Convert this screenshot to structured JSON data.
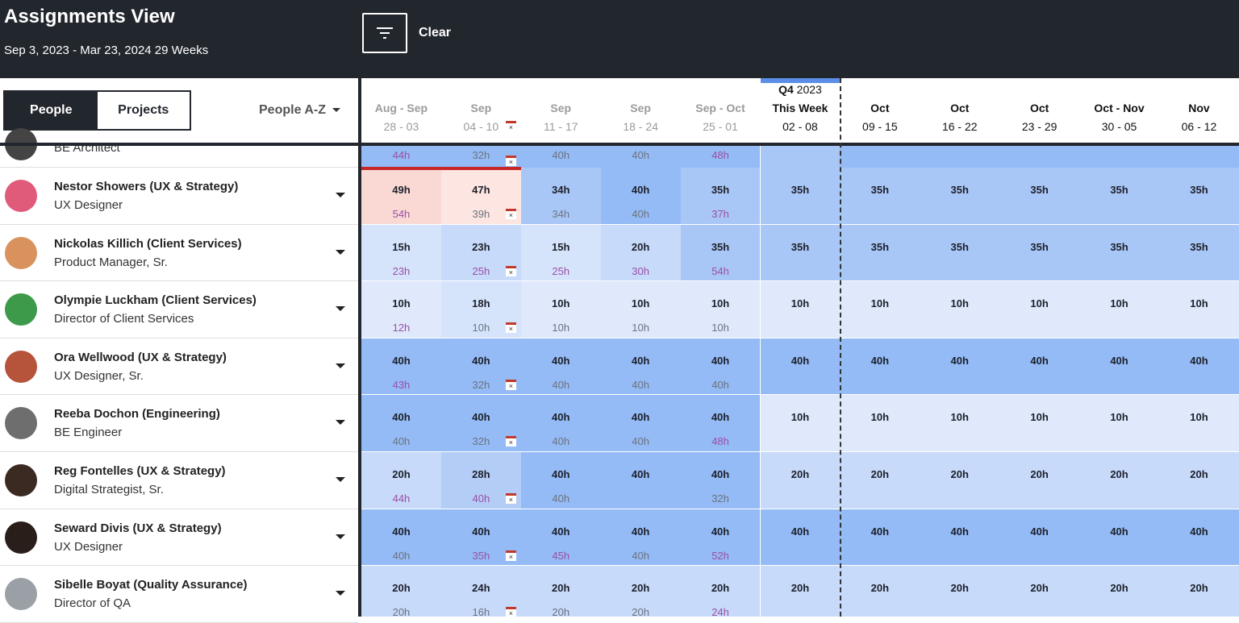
{
  "header": {
    "title": "Assignments View",
    "date_range": "Sep 3, 2023 - Mar 23, 2024  29 Weeks",
    "filter_icon": "filter-icon",
    "clear_label": "Clear"
  },
  "toolbar": {
    "people_label": "People",
    "projects_label": "Projects",
    "sort_label": "People A-Z"
  },
  "columns": [
    {
      "month": "Aug - Sep",
      "dates": "28 - 03",
      "state": "past"
    },
    {
      "month": "Sep",
      "dates": "04 - 10",
      "state": "past",
      "holiday": true
    },
    {
      "month": "Sep",
      "dates": "11 - 17",
      "state": "past"
    },
    {
      "month": "Sep",
      "dates": "18 - 24",
      "state": "past"
    },
    {
      "month": "Sep - Oct",
      "dates": "25 - 01",
      "state": "past"
    },
    {
      "quarter": "Q4",
      "year": "2023",
      "month": "This Week",
      "dates": "02 - 08",
      "state": "cur"
    },
    {
      "month": "Oct",
      "dates": "09 - 15",
      "state": "fut"
    },
    {
      "month": "Oct",
      "dates": "16 - 22",
      "state": "fut"
    },
    {
      "month": "Oct",
      "dates": "23 - 29",
      "state": "fut"
    },
    {
      "month": "Oct - Nov",
      "dates": "30 - 05",
      "state": "fut"
    },
    {
      "month": "Nov",
      "dates": "06 - 12",
      "state": "fut"
    }
  ],
  "colors": {
    "dark": "#22262d",
    "over_text": "#9a4fa6",
    "overbooked": "#fadad5",
    "accent": "#5b8ee6"
  },
  "partial_row": {
    "role": "BE Architect",
    "subs": [
      "44h",
      "32h",
      "40h",
      "40h",
      "48h"
    ],
    "over": [
      true,
      false,
      false,
      false,
      true
    ]
  },
  "people": [
    {
      "name": "Nestor Showers (UX & Strategy)",
      "role": "UX Designer",
      "avatar": "#e05a7a",
      "hours": [
        49,
        47,
        34,
        40,
        35,
        35,
        35,
        35,
        35,
        35,
        35
      ],
      "subs": [
        "54h",
        "39h",
        "34h",
        "40h",
        "37h"
      ],
      "over": [
        true,
        false,
        false,
        false,
        true
      ],
      "overbooked": [
        0,
        1
      ]
    },
    {
      "name": "Nickolas Killich (Client Services)",
      "role": "Product Manager, Sr.",
      "avatar": "#d9925e",
      "hours": [
        15,
        23,
        15,
        20,
        35,
        35,
        35,
        35,
        35,
        35,
        35
      ],
      "subs": [
        "23h",
        "25h",
        "25h",
        "30h",
        "54h"
      ],
      "over": [
        true,
        true,
        true,
        true,
        true
      ]
    },
    {
      "name": "Olympie Luckham (Client Services)",
      "role": "Director of Client Services",
      "avatar": "#3d9a4a",
      "hours": [
        10,
        18,
        10,
        10,
        10,
        10,
        10,
        10,
        10,
        10,
        10
      ],
      "subs": [
        "12h",
        "10h",
        "10h",
        "10h",
        "10h"
      ],
      "over": [
        true,
        false,
        false,
        false,
        false
      ]
    },
    {
      "name": "Ora Wellwood (UX & Strategy)",
      "role": "UX Designer, Sr.",
      "avatar": "#b5543a",
      "hours": [
        40,
        40,
        40,
        40,
        40,
        40,
        40,
        40,
        40,
        40,
        40
      ],
      "subs": [
        "43h",
        "32h",
        "40h",
        "40h",
        "40h"
      ],
      "over": [
        true,
        false,
        false,
        false,
        false
      ]
    },
    {
      "name": "Reeba Dochon (Engineering)",
      "role": "BE Engineer",
      "avatar": "#6e6e6e",
      "hours": [
        40,
        40,
        40,
        40,
        40,
        10,
        10,
        10,
        10,
        10,
        10
      ],
      "subs": [
        "40h",
        "32h",
        "40h",
        "40h",
        "48h"
      ],
      "over": [
        false,
        false,
        false,
        false,
        true
      ]
    },
    {
      "name": "Reg Fontelles (UX & Strategy)",
      "role": "Digital Strategist, Sr.",
      "avatar": "#3a2a22",
      "hours": [
        20,
        28,
        40,
        40,
        40,
        20,
        20,
        20,
        20,
        20,
        20
      ],
      "subs": [
        "44h",
        "40h",
        "40h",
        "",
        "32h"
      ],
      "over": [
        true,
        true,
        false,
        false,
        false
      ]
    },
    {
      "name": "Seward Divis (UX & Strategy)",
      "role": "UX Designer",
      "avatar": "#2a1e1a",
      "hours": [
        40,
        40,
        40,
        40,
        40,
        40,
        40,
        40,
        40,
        40,
        40
      ],
      "subs": [
        "40h",
        "35h",
        "45h",
        "40h",
        "52h"
      ],
      "over": [
        false,
        true,
        true,
        false,
        true
      ]
    },
    {
      "name": "Sibelle Boyat (Quality Assurance)",
      "role": "Director of QA",
      "avatar": "#9aa0a6",
      "hours": [
        20,
        24,
        20,
        20,
        20,
        20,
        20,
        20,
        20,
        20,
        20
      ],
      "subs": [
        "20h",
        "16h",
        "20h",
        "20h",
        "24h"
      ],
      "over": [
        false,
        false,
        false,
        false,
        true
      ]
    }
  ]
}
